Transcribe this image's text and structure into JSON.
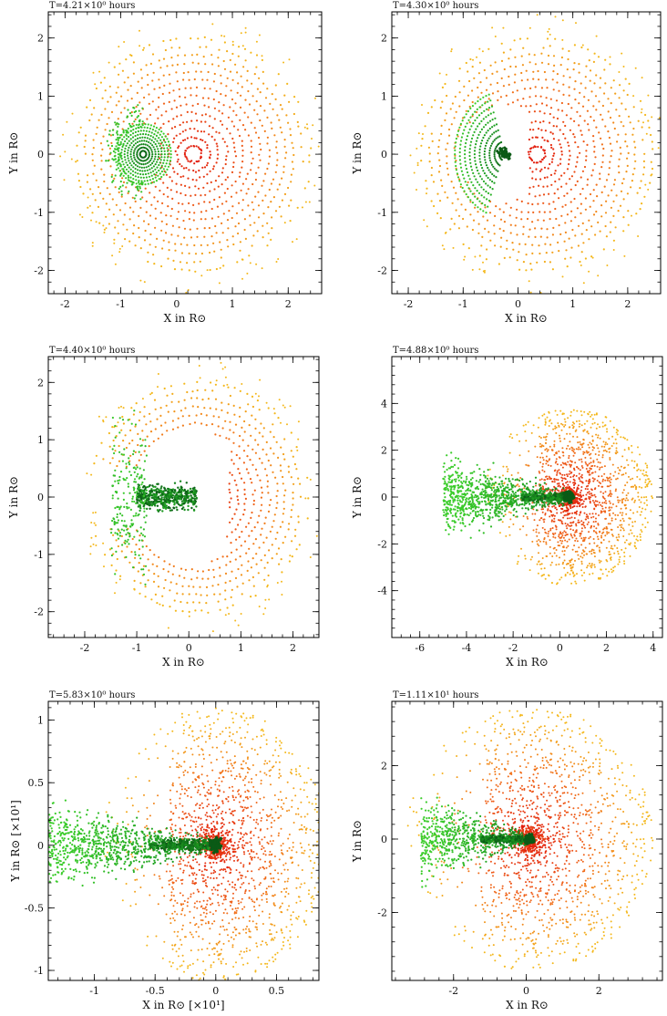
{
  "figure": {
    "description_colors": {
      "star1_core": "#0b5a16",
      "star1_mid": "#1e9e22",
      "star1_outer": "#3ccc2c",
      "star2_core": "#e0140c",
      "star2_mid": "#f0641a",
      "star2_outer": "#f4b81c",
      "axis": "#000000"
    }
  },
  "chart_data": [
    {
      "type": "scatter",
      "title": "T=4.21×10⁰ hours",
      "xlabel": "X in R⊙",
      "ylabel": "Y in R⊙",
      "xlim": [
        -2.3,
        2.6
      ],
      "ylim": [
        -2.4,
        2.45
      ],
      "xticks": [
        -2,
        -1,
        0,
        1,
        2
      ],
      "yticks": [
        -2,
        -1,
        0,
        1,
        2
      ],
      "series": [
        {
          "name": "donor (green)",
          "center": [
            -0.6,
            0
          ],
          "radius": 0.5,
          "morph": "sphere"
        },
        {
          "name": "accretor (red/orange)",
          "center": [
            0.3,
            0
          ],
          "radius": 2.0,
          "morph": "rings"
        }
      ]
    },
    {
      "type": "scatter",
      "title": "T=4.30×10⁰ hours",
      "xlabel": "X in R⊙",
      "ylabel": "Y in R⊙",
      "xlim": [
        -2.3,
        2.6
      ],
      "ylim": [
        -2.4,
        2.45
      ],
      "xticks": [
        -2,
        -1,
        0,
        1,
        2
      ],
      "yticks": [
        -2,
        -1,
        0,
        1,
        2
      ],
      "series": [
        {
          "name": "donor (green)",
          "center": [
            -0.25,
            0
          ],
          "radius": 0.9,
          "morph": "crescent"
        },
        {
          "name": "accretor (red/orange)",
          "center": [
            0.35,
            0
          ],
          "radius": 2.0,
          "morph": "rings"
        }
      ]
    },
    {
      "type": "scatter",
      "title": "T=4.40×10⁰ hours",
      "xlabel": "X in R⊙",
      "ylabel": "Y in R⊙",
      "xlim": [
        -2.7,
        2.5
      ],
      "ylim": [
        -2.45,
        2.45
      ],
      "xticks": [
        -2,
        -1,
        0,
        1,
        2
      ],
      "yticks": [
        -2,
        -1,
        0,
        1,
        2
      ],
      "series": [
        {
          "name": "donor (green)",
          "center": [
            0.1,
            0
          ],
          "radius": 1.3,
          "morph": "stream"
        },
        {
          "name": "accretor (red/orange)",
          "center": [
            0.2,
            0
          ],
          "radius": 2.0,
          "morph": "rings"
        }
      ]
    },
    {
      "type": "scatter",
      "title": "T=4.88×10⁰ hours",
      "xlabel": "X in R⊙",
      "ylabel": "Y in R⊙",
      "xlim": [
        -7.2,
        4.4
      ],
      "ylim": [
        -6.0,
        6.0
      ],
      "xticks": [
        -6,
        -4,
        -2,
        0,
        2,
        4
      ],
      "yticks": [
        -4,
        -2,
        0,
        2,
        4
      ],
      "series": [
        {
          "name": "donor (green)",
          "center": [
            0.4,
            0
          ],
          "radius": 4.5,
          "morph": "tail"
        },
        {
          "name": "accretor (red/orange)",
          "center": [
            0.4,
            0
          ],
          "radius": 3.8,
          "morph": "cloud"
        }
      ]
    },
    {
      "type": "scatter",
      "title": "T=5.83×10⁰ hours",
      "xlabel": "X in R⊙ [×10¹]",
      "ylabel": "Y in R⊙ [×10¹]",
      "xlim": [
        -1.38,
        0.85
      ],
      "ylim": [
        -1.08,
        1.15
      ],
      "xticks": [
        -1,
        -0.5,
        0,
        0.5
      ],
      "yticks": [
        -1,
        -0.5,
        0,
        0.5,
        1
      ],
      "series": [
        {
          "name": "donor (green)",
          "center": [
            0.0,
            0
          ],
          "radius": 1.2,
          "morph": "tail"
        },
        {
          "name": "accretor (red/orange)",
          "center": [
            0.0,
            0
          ],
          "radius": 1.1,
          "morph": "cloud"
        }
      ]
    },
    {
      "type": "scatter",
      "title": "T=1.11×10¹ hours",
      "xlabel": "X in R⊙",
      "ylabel": "Y in R⊙",
      "xlim": [
        -3.7,
        3.75
      ],
      "ylim": [
        -3.85,
        3.75
      ],
      "xticks": [
        -2,
        0,
        2
      ],
      "yticks": [
        -2,
        0,
        2
      ],
      "series": [
        {
          "name": "donor (green)",
          "center": [
            0.1,
            0
          ],
          "radius": 3.0,
          "morph": "tail"
        },
        {
          "name": "merged core (red/orange)",
          "center": [
            0.1,
            0
          ],
          "radius": 3.6,
          "morph": "cloud"
        }
      ]
    }
  ]
}
